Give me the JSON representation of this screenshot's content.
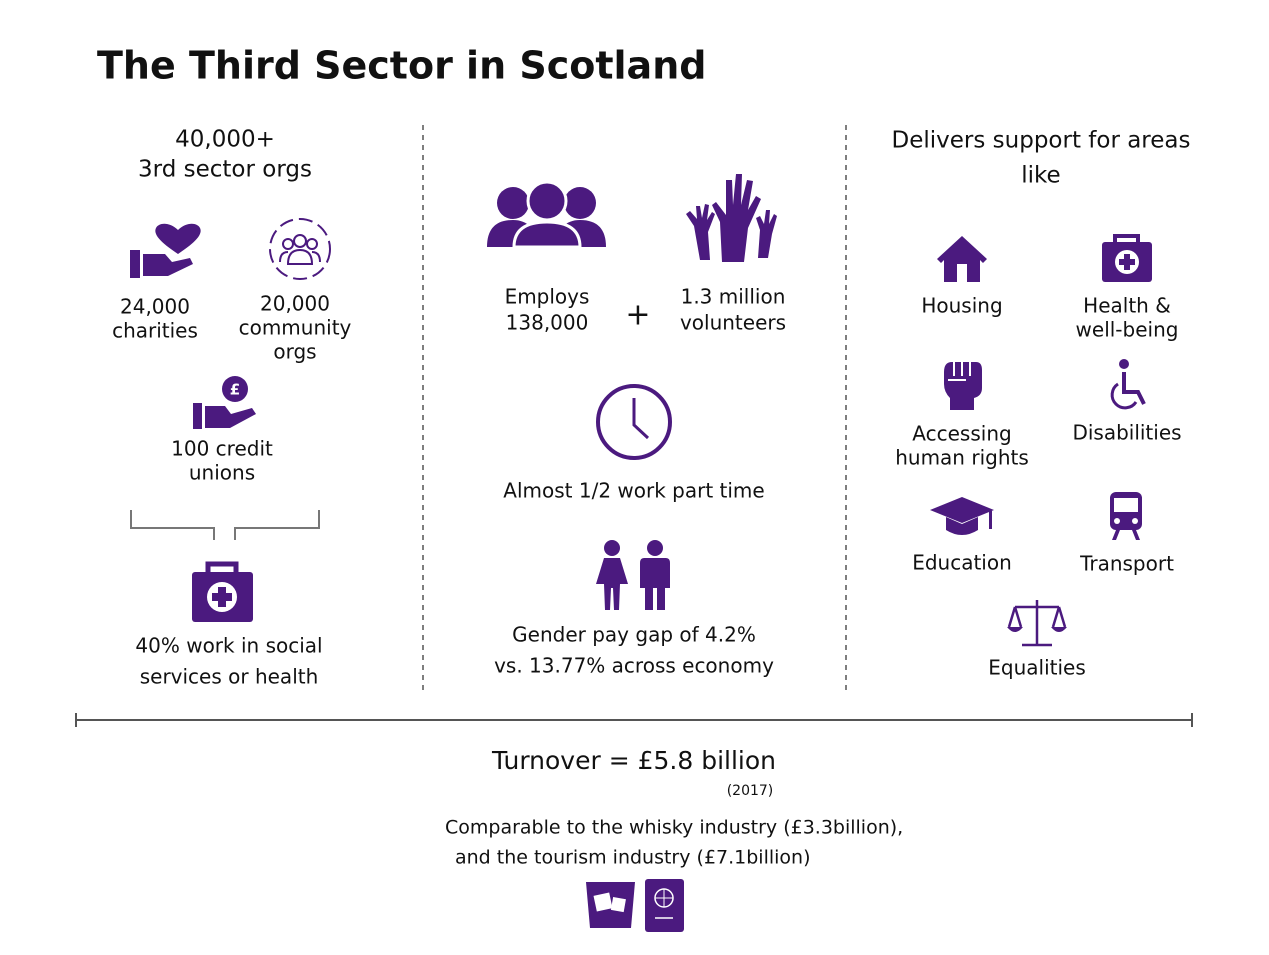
{
  "title": "The Third Sector in Scotland",
  "left": {
    "heading": [
      "40,000+",
      "3rd sector orgs"
    ],
    "items": [
      [
        "24,000",
        "charities"
      ],
      [
        "20,000",
        "community",
        "orgs"
      ],
      [
        "100 credit",
        "unions"
      ],
      [
        "40% work in social",
        "services or health"
      ]
    ]
  },
  "middle": {
    "employs": [
      "Employs",
      "138,000"
    ],
    "plus": "+",
    "volunteers": [
      "1.3 million",
      "volunteers"
    ],
    "part_time": "Almost 1/2 work part time",
    "gender": [
      "Gender pay gap of 4.2%",
      "vs. 13.77% across economy"
    ]
  },
  "right": {
    "heading": [
      "Delivers support for areas",
      "like"
    ],
    "areas": [
      [
        "Housing"
      ],
      [
        "Health &",
        "well-being"
      ],
      [
        "Accessing",
        "human rights"
      ],
      [
        "Disabilities"
      ],
      [
        "Education"
      ],
      [
        "Transport"
      ],
      [
        "Equalities"
      ]
    ]
  },
  "footer": {
    "turnover": "Turnover = £5.8 billion",
    "year": "(2017)",
    "comparison": [
      "Comparable to the whisky industry (£3.3billion),",
      "and the tourism industry (£7.1billion)"
    ]
  }
}
